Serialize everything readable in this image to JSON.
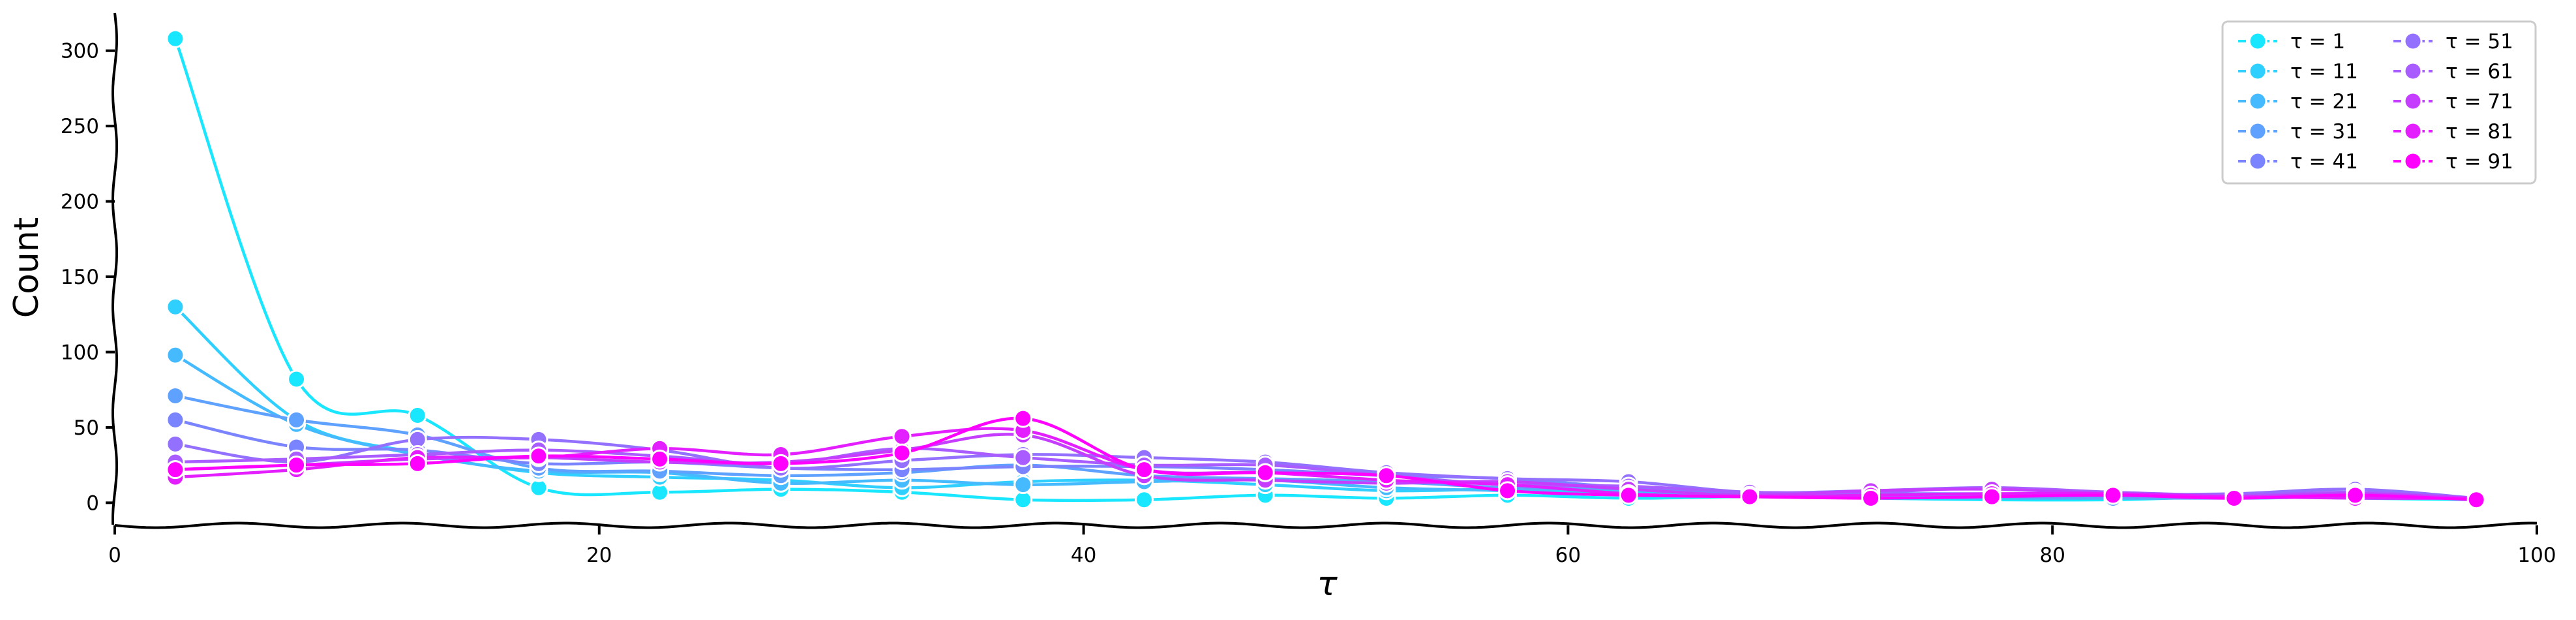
{
  "chart_data": {
    "type": "line",
    "xlabel": "τ",
    "ylabel": "Count",
    "xlim": [
      0,
      100
    ],
    "ylim": [
      -15,
      325
    ],
    "xticks": [
      0,
      20,
      40,
      60,
      80,
      100
    ],
    "yticks": [
      0,
      50,
      100,
      150,
      200,
      250,
      300
    ],
    "grid": false,
    "legend": {
      "placement": "top-right",
      "columns": 2
    },
    "x": [
      2.5,
      7.5,
      12.5,
      17.5,
      22.5,
      27.5,
      32.5,
      37.5,
      42.5,
      47.5,
      52.5,
      57.5,
      62.5,
      67.5,
      72.5,
      77.5,
      82.5,
      87.5,
      92.5,
      97.5
    ],
    "series": [
      {
        "name": "τ = 1",
        "color": "#19e6ff",
        "values": [
          308,
          82,
          58,
          10,
          7,
          9,
          7,
          2,
          2,
          5,
          3,
          5,
          3,
          4,
          3,
          2,
          2,
          4,
          3,
          2
        ]
      },
      {
        "name": "τ = 11",
        "color": "#2fd0ff",
        "values": [
          130,
          55,
          33,
          20,
          17,
          15,
          10,
          14,
          15,
          12,
          8,
          9,
          7,
          4,
          4,
          3,
          5,
          3,
          4,
          2
        ]
      },
      {
        "name": "τ = 21",
        "color": "#45baff",
        "values": [
          98,
          52,
          32,
          21,
          20,
          13,
          15,
          12,
          14,
          15,
          10,
          8,
          6,
          5,
          4,
          3,
          3,
          4,
          5,
          2
        ]
      },
      {
        "name": "τ = 31",
        "color": "#5ea1ff",
        "values": [
          71,
          55,
          45,
          23,
          21,
          18,
          20,
          25,
          18,
          16,
          14,
          10,
          9,
          6,
          5,
          4,
          3,
          3,
          4,
          3
        ]
      },
      {
        "name": "τ = 41",
        "color": "#7b84ff",
        "values": [
          55,
          37,
          35,
          26,
          27,
          23,
          22,
          24,
          24,
          22,
          18,
          16,
          10,
          7,
          6,
          6,
          5,
          4,
          4,
          3
        ]
      },
      {
        "name": "τ = 51",
        "color": "#9470ff",
        "values": [
          39,
          27,
          42,
          42,
          35,
          23,
          28,
          32,
          30,
          27,
          20,
          16,
          14,
          7,
          8,
          10,
          6,
          6,
          9,
          3
        ]
      },
      {
        "name": "τ = 61",
        "color": "#a95cff",
        "values": [
          27,
          29,
          32,
          35,
          31,
          26,
          36,
          30,
          25,
          25,
          18,
          12,
          11,
          7,
          7,
          10,
          7,
          5,
          7,
          3
        ]
      },
      {
        "name": "τ = 71",
        "color": "#c53eff",
        "values": [
          22,
          25,
          29,
          30,
          27,
          27,
          35,
          45,
          18,
          15,
          13,
          14,
          9,
          5,
          8,
          9,
          6,
          4,
          6,
          3
        ]
      },
      {
        "name": "τ = 81",
        "color": "#e41fff",
        "values": [
          17,
          22,
          30,
          30,
          36,
          32,
          44,
          48,
          22,
          20,
          15,
          12,
          6,
          4,
          5,
          6,
          6,
          4,
          3,
          3
        ]
      },
      {
        "name": "τ = 91",
        "color": "#ff00ff",
        "values": [
          22,
          25,
          26,
          31,
          29,
          26,
          33,
          56,
          22,
          20,
          18,
          8,
          5,
          4,
          3,
          4,
          5,
          3,
          5,
          2
        ]
      }
    ]
  }
}
